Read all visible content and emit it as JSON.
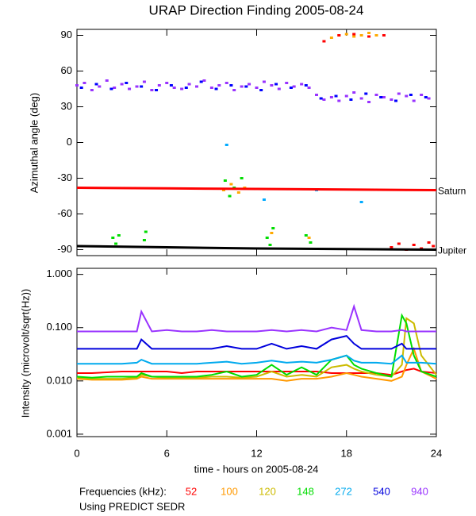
{
  "chart_data": [
    {
      "type": "scatter",
      "title": "URAP Direction Finding  2005-08-24",
      "y_label": "Azimuthal angle (deg)",
      "xlim": [
        0,
        24
      ],
      "xticks": [
        0,
        6,
        12,
        18,
        24
      ],
      "ylim": [
        -95,
        95
      ],
      "yticks": [
        90,
        60,
        30,
        0,
        -30,
        -60,
        -90
      ],
      "series": [
        {
          "color": "#9933ff",
          "x": [
            0,
            0.5,
            1,
            1.5,
            2,
            2.5,
            3,
            3.5,
            4,
            4.5,
            5,
            5.5,
            6,
            6.5,
            7,
            7.5,
            8,
            8.5,
            9,
            9.5,
            10,
            10.5,
            11,
            11.5,
            12,
            12.5,
            13,
            13.5,
            14,
            14.5,
            15,
            15.5,
            16,
            16.5,
            17,
            17.5,
            18,
            18.5,
            19,
            19.5,
            20,
            20.5,
            21,
            21.5,
            22,
            22.5,
            23,
            23.5
          ],
          "values": [
            48,
            50,
            44,
            47,
            52,
            46,
            49,
            45,
            47,
            51,
            44,
            48,
            50,
            46,
            45,
            49,
            47,
            52,
            46,
            48,
            50,
            44,
            47,
            49,
            46,
            51,
            48,
            45,
            50,
            47,
            49,
            46,
            40,
            36,
            38,
            35,
            39,
            42,
            37,
            34,
            40,
            38,
            36,
            41,
            39,
            35,
            40,
            37
          ]
        },
        {
          "color": "#0000ff",
          "x": [
            0.3,
            1.3,
            2.3,
            3.3,
            4.3,
            5.3,
            6.3,
            7.3,
            8.3,
            9.3,
            10.3,
            11.3,
            12.3,
            13.3,
            14.3,
            15.3,
            16.3,
            17.3,
            18.3,
            19.3,
            20.3,
            21.3,
            22.3,
            23.3
          ],
          "values": [
            46,
            49,
            45,
            50,
            47,
            44,
            48,
            46,
            51,
            45,
            48,
            47,
            44,
            49,
            46,
            48,
            37,
            39,
            36,
            41,
            38,
            35,
            40,
            38
          ]
        },
        {
          "color": "#00dd00",
          "x": [
            2.4,
            2.6,
            2.8,
            4.5,
            4.6,
            9.9,
            10.2,
            10.5,
            11.0,
            12.7,
            12.9,
            13.1,
            15.3,
            15.6
          ],
          "values": [
            -80,
            -85,
            -78,
            -82,
            -75,
            -32,
            -45,
            -38,
            -30,
            -80,
            -86,
            -72,
            -78,
            -84
          ]
        },
        {
          "color": "#ffaa00",
          "x": [
            9.8,
            10.3,
            10.8,
            11.2,
            13.0,
            15.5,
            17.0,
            17.5,
            18.0,
            18.5,
            19.0,
            19.5,
            20.0
          ],
          "values": [
            -40,
            -35,
            -42,
            -38,
            -76,
            -80,
            88,
            90,
            91,
            89,
            90,
            92,
            90
          ]
        },
        {
          "color": "#ff0000",
          "x": [
            16.5,
            17.5,
            18.5,
            19.5,
            20.5,
            21.0,
            21.5,
            22.0,
            22.5,
            23.0,
            23.5,
            23.8
          ],
          "values": [
            85,
            90,
            91,
            89,
            90,
            -88,
            -85,
            -90,
            -86,
            -89,
            -84,
            -87
          ]
        },
        {
          "color": "#00aaff",
          "x": [
            10.0,
            12.5,
            16.0,
            19.0
          ],
          "values": [
            -2,
            -48,
            -40,
            -50
          ]
        },
        {
          "name": "Saturn",
          "color": "#ff0000",
          "line": true,
          "x": [
            0,
            6,
            12,
            18,
            24
          ],
          "values": [
            -38,
            -38.5,
            -39,
            -39.5,
            -40
          ]
        },
        {
          "name": "Jupiter",
          "color": "#000000",
          "line": true,
          "x": [
            0,
            6,
            12,
            18,
            24
          ],
          "values": [
            -87,
            -88,
            -89,
            -89.5,
            -90
          ]
        }
      ]
    },
    {
      "type": "line",
      "y_label": "Intensity (microvolt/sqrt(Hz))",
      "x_label": "time - hours on 2005-08-24",
      "xlim": [
        0,
        24
      ],
      "xticks": [
        0,
        6,
        12,
        18,
        24
      ],
      "ylim": [
        0.0009,
        1.3
      ],
      "log_scale": true,
      "yticks": [
        {
          "value": 1,
          "label": "1.000"
        },
        {
          "value": 0.1,
          "label": "0.100"
        },
        {
          "value": 0.01,
          "label": "0.010"
        },
        {
          "value": 0.001,
          "label": "0.001"
        }
      ],
      "legend_title": "Frequencies (kHz):",
      "note": "Using PREDICT SEDR",
      "x": [
        0,
        1,
        2,
        3,
        4,
        4.3,
        5,
        6,
        7,
        8,
        9,
        10,
        11,
        12,
        13,
        14,
        15,
        16,
        17,
        18,
        18.5,
        19,
        20,
        21,
        21.7,
        22,
        22.5,
        23,
        24
      ],
      "series": [
        {
          "name": "52",
          "color": "#ff0000",
          "values": [
            0.014,
            0.014,
            0.0145,
            0.015,
            0.015,
            0.015,
            0.015,
            0.015,
            0.014,
            0.015,
            0.015,
            0.015,
            0.015,
            0.015,
            0.015,
            0.015,
            0.015,
            0.015,
            0.014,
            0.014,
            0.014,
            0.014,
            0.014,
            0.013,
            0.015,
            0.016,
            0.017,
            0.015,
            0.014
          ]
        },
        {
          "name": "100",
          "color": "#ff9900",
          "values": [
            0.011,
            0.0105,
            0.0105,
            0.0105,
            0.011,
            0.012,
            0.011,
            0.011,
            0.011,
            0.011,
            0.011,
            0.011,
            0.011,
            0.011,
            0.011,
            0.01,
            0.011,
            0.011,
            0.012,
            0.014,
            0.013,
            0.012,
            0.011,
            0.01,
            0.012,
            0.02,
            0.04,
            0.015,
            0.011
          ]
        },
        {
          "name": "120",
          "color": "#ccbb00",
          "values": [
            0.0115,
            0.011,
            0.011,
            0.011,
            0.0115,
            0.013,
            0.012,
            0.0115,
            0.0115,
            0.0115,
            0.012,
            0.012,
            0.0115,
            0.012,
            0.015,
            0.012,
            0.013,
            0.012,
            0.018,
            0.02,
            0.017,
            0.015,
            0.013,
            0.012,
            0.02,
            0.15,
            0.12,
            0.03,
            0.013
          ]
        },
        {
          "name": "148",
          "color": "#00dd00",
          "values": [
            0.012,
            0.0115,
            0.012,
            0.012,
            0.012,
            0.014,
            0.012,
            0.012,
            0.012,
            0.012,
            0.013,
            0.015,
            0.012,
            0.013,
            0.02,
            0.013,
            0.018,
            0.013,
            0.025,
            0.03,
            0.02,
            0.017,
            0.014,
            0.012,
            0.17,
            0.12,
            0.03,
            0.015,
            0.012
          ]
        },
        {
          "name": "272",
          "color": "#00aaee",
          "values": [
            0.021,
            0.021,
            0.021,
            0.021,
            0.022,
            0.025,
            0.021,
            0.021,
            0.021,
            0.021,
            0.022,
            0.023,
            0.021,
            0.022,
            0.024,
            0.022,
            0.023,
            0.022,
            0.025,
            0.03,
            0.024,
            0.022,
            0.022,
            0.021,
            0.03,
            0.022,
            0.022,
            0.022,
            0.021
          ]
        },
        {
          "name": "540",
          "color": "#0000dd",
          "values": [
            0.04,
            0.04,
            0.04,
            0.04,
            0.04,
            0.06,
            0.04,
            0.04,
            0.04,
            0.04,
            0.04,
            0.045,
            0.04,
            0.04,
            0.05,
            0.04,
            0.045,
            0.04,
            0.06,
            0.07,
            0.05,
            0.04,
            0.04,
            0.04,
            0.05,
            0.04,
            0.04,
            0.04,
            0.04
          ]
        },
        {
          "name": "940",
          "color": "#9933ff",
          "values": [
            0.085,
            0.085,
            0.085,
            0.085,
            0.085,
            0.2,
            0.085,
            0.09,
            0.085,
            0.085,
            0.09,
            0.085,
            0.085,
            0.085,
            0.09,
            0.085,
            0.09,
            0.085,
            0.1,
            0.09,
            0.25,
            0.09,
            0.085,
            0.085,
            0.09,
            0.085,
            0.085,
            0.085,
            0.085
          ]
        }
      ]
    }
  ]
}
